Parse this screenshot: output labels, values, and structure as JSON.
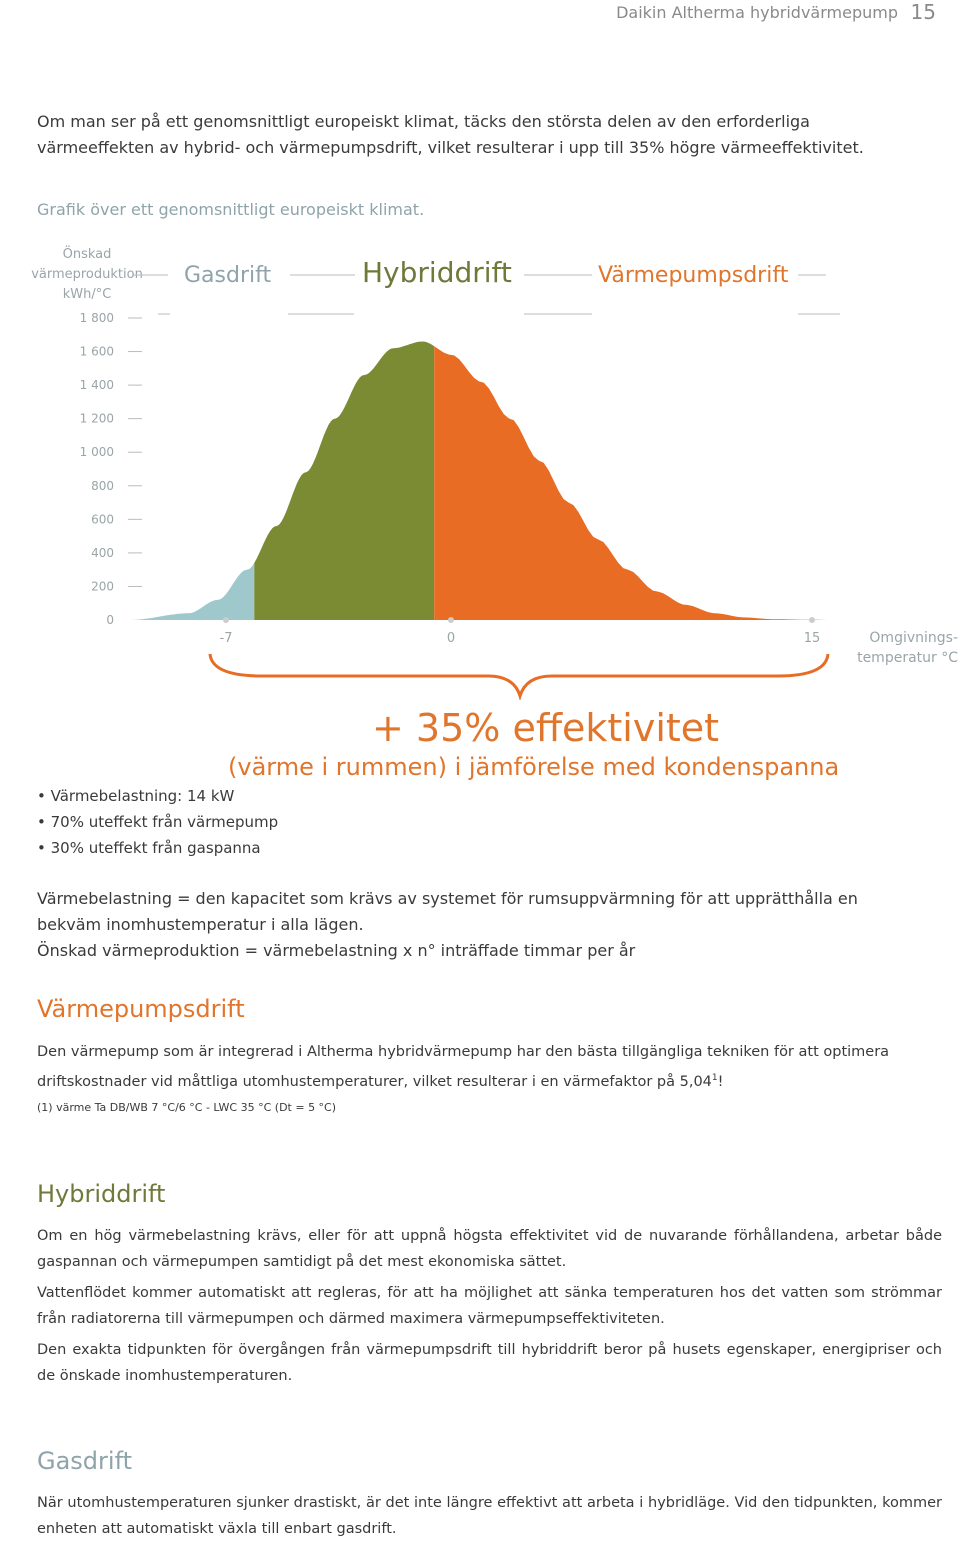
{
  "header": {
    "title": "Daikin Altherma hybridvärmepump",
    "page_number": "15"
  },
  "intro": "Om man ser på ett genomsnittligt europeiskt klimat, täcks den största delen av den erforderliga värmeeffekten av hybrid- och värmepumpsdrift, vilket resulterar i upp till 35% högre värmeeffektivitet.",
  "chart_caption": "Grafik över ett genomsnittligt europeiskt klimat.",
  "chart_data": {
    "type": "area",
    "ylabel": "Önskad värmeproduktion kWh/°C",
    "xlabel": "Omgivnings-temperatur °C",
    "ylabel_lines": [
      "Önskad",
      "värmeproduktion",
      "kWh/°C"
    ],
    "xlabel_lines": [
      "Omgivnings-",
      "temperatur °C"
    ],
    "y_ticks": [
      "1 800",
      "1 600",
      "1 400",
      "1 200",
      "1 000",
      "800",
      "600",
      "400",
      "200",
      "0"
    ],
    "x_ticks": [
      "-7",
      "0",
      "15"
    ],
    "x_tick_values": [
      -7,
      0,
      15
    ],
    "ylim": [
      0,
      1800
    ],
    "xlim": [
      -18,
      30
    ],
    "grid": false,
    "regions": [
      {
        "name": "Gasdrift",
        "x_range": [
          -18,
          -9.5
        ],
        "color": "#9ec8cc"
      },
      {
        "name": "Hybriddrift",
        "x_range": [
          -9.5,
          2.8
        ],
        "color": "#7a8b33"
      },
      {
        "name": "Värmepumpsdrift",
        "x_range": [
          2.8,
          30
        ],
        "color": "#e86c23"
      }
    ],
    "curve": {
      "x": [
        -18,
        -14,
        -12,
        -10,
        -8,
        -6,
        -4,
        -2,
        0,
        2,
        4,
        6,
        8,
        10,
        12,
        14,
        16,
        18,
        20,
        22,
        24,
        26,
        28,
        30
      ],
      "y": [
        0,
        40,
        120,
        300,
        560,
        880,
        1200,
        1460,
        1620,
        1660,
        1580,
        1420,
        1200,
        950,
        700,
        480,
        300,
        170,
        90,
        40,
        15,
        5,
        2,
        0
      ]
    },
    "region_label_colors": {
      "Gasdrift": "#8ea4aa",
      "Hybriddrift": "#6e7a3a",
      "Värmepumpsdrift": "#e0752c"
    }
  },
  "efficiency": {
    "headline": "+ 35% effektivitet",
    "subline": "(värme i rummen) i jämförelse med kondenspanna",
    "color": "#e0752c"
  },
  "bullets": [
    "Värmebelastning: 14 kW",
    "70% uteffekt från värmepump",
    "30% uteffekt från gaspanna"
  ],
  "definitions": {
    "line1": "Värmebelastning = den kapacitet som krävs av systemet för rumsuppvärmning för att upprätthålla en bekväm inomhustemperatur i alla lägen.",
    "line2": "Önskad värmeproduktion = värmebelastning x n° inträffade timmar per år"
  },
  "sections": {
    "heatpump": {
      "title": "Värmepumpsdrift",
      "color": "#e0752c",
      "body": "Den värmepump som är integrerad i Altherma hybridvärmepump har den bästa tillgängliga tekniken för att optimera driftskostnader vid måttliga utomhustemperaturer, vilket resulterar i en värmefaktor på 5,04",
      "sup": "1",
      "body_end": "!",
      "footnote": "(1) värme Ta DB/WB 7 °C/6 °C - LWC 35 °C (Dt = 5 °C)"
    },
    "hybrid": {
      "title": "Hybriddrift",
      "color": "#6e7a3a",
      "p1": "Om en hög värmebelastning krävs, eller för att uppnå högsta effektivitet vid de nuvarande förhållandena, arbetar både gaspannan och värmepumpen samtidigt på det mest ekonomiska sättet.",
      "p2": "Vattenflödet kommer automatiskt att regleras, för att ha möjlighet att sänka temperaturen hos det vatten som strömmar från radiatorerna till värmepumpen och därmed maximera värmepumpseffektiviteten.",
      "p3": "Den exakta tidpunkten för övergången från värmepumpsdrift till hybriddrift beror på husets egenskaper, energipriser och de önskade inomhustemperaturen."
    },
    "gas": {
      "title": "Gasdrift",
      "color": "#8ea4aa",
      "body": "När utomhustemperaturen sjunker drastiskt, är det inte längre effektivt att arbeta i hybridläge. Vid den tidpunkten, kommer enheten att automatiskt växla till enbart gasdrift."
    }
  }
}
